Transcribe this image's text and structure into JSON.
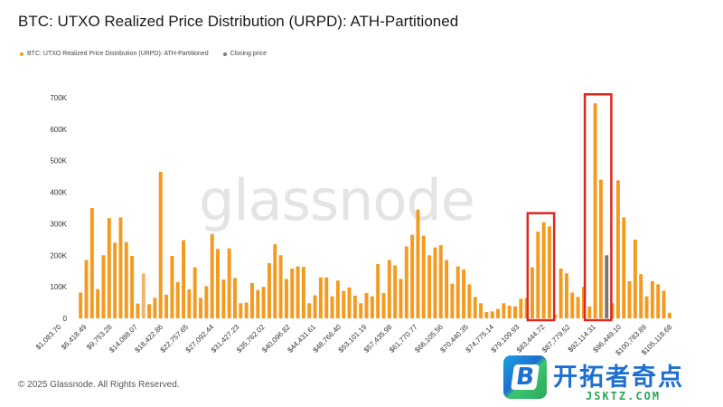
{
  "page": {
    "title": "BTC: UTXO Realized Price Distribution (URPD): ATH-Partitioned",
    "footer": "© 2025 Glassnode. All Rights Reserved.",
    "watermark": "glassnode"
  },
  "brand": {
    "name": "开拓者奇点",
    "url": "JSKTZ.COM",
    "badge_letter": "B"
  },
  "colors": {
    "series": "#f39a1f",
    "series_light": "#f3b36a",
    "closing": "#777777",
    "highlight_box": "#e0261f",
    "axis_text": "#333333"
  },
  "chart_data": {
    "type": "bar",
    "title": "BTC: UTXO Realized Price Distribution (URPD): ATH-Partitioned",
    "legend": [
      {
        "name": "BTC: UTXO Realized Price Distribution (URPD): ATH-Partitioned",
        "color": "#f39a1f"
      },
      {
        "name": "Closing price",
        "color": "#777777"
      }
    ],
    "legend_position": "top-left",
    "ylim": [
      0,
      700000
    ],
    "y_ticks": [
      "0",
      "100K",
      "200K",
      "300K",
      "400K",
      "500K",
      "600K",
      "700K"
    ],
    "x_tick_labels": [
      "$1,083.70",
      "$5,418.49",
      "$9,753.28",
      "$14,088.07",
      "$18,422.86",
      "$22,757.65",
      "$27,092.44",
      "$31,427.23",
      "$35,762.02",
      "$40,096.82",
      "$44,431.61",
      "$48,766.40",
      "$53,101.19",
      "$57,435.98",
      "$61,770.77",
      "$66,105.56",
      "$70,440.35",
      "$74,775.14",
      "$79,109.93",
      "$83,444.72",
      "$87,779.52",
      "$92,114.31",
      "$96,449.10",
      "$100,783.89",
      "$105,118.68"
    ],
    "values": [
      82000,
      185000,
      350000,
      93000,
      200000,
      318000,
      240000,
      320000,
      242000,
      198000,
      47000,
      142000,
      45000,
      65000,
      465000,
      75000,
      198000,
      115000,
      248000,
      92000,
      162000,
      65000,
      102000,
      268000,
      220000,
      123000,
      222000,
      128000,
      48000,
      50000,
      112000,
      90000,
      100000,
      175000,
      235000,
      200000,
      125000,
      158000,
      165000,
      163000,
      48000,
      73000,
      130000,
      130000,
      70000,
      120000,
      87000,
      98000,
      72000,
      48000,
      80000,
      70000,
      172000,
      80000,
      185000,
      168000,
      125000,
      228000,
      265000,
      345000,
      262000,
      200000,
      225000,
      232000,
      185000,
      110000,
      165000,
      155000,
      108000,
      68000,
      48000,
      20000,
      22000,
      30000,
      48000,
      40000,
      38000,
      62000,
      65000,
      162000,
      275000,
      305000,
      292000,
      12000,
      158000,
      143000,
      82000,
      68000,
      100000,
      38000,
      682000,
      440000,
      200000,
      48000,
      438000,
      320000,
      118000,
      250000,
      140000,
      70000,
      118000,
      108000,
      88000,
      18000
    ],
    "light_bars": [
      11
    ],
    "closing_bar_index": 92,
    "highlight_boxes": [
      [
        79,
        82
      ],
      [
        89,
        92
      ]
    ],
    "grid": false
  }
}
